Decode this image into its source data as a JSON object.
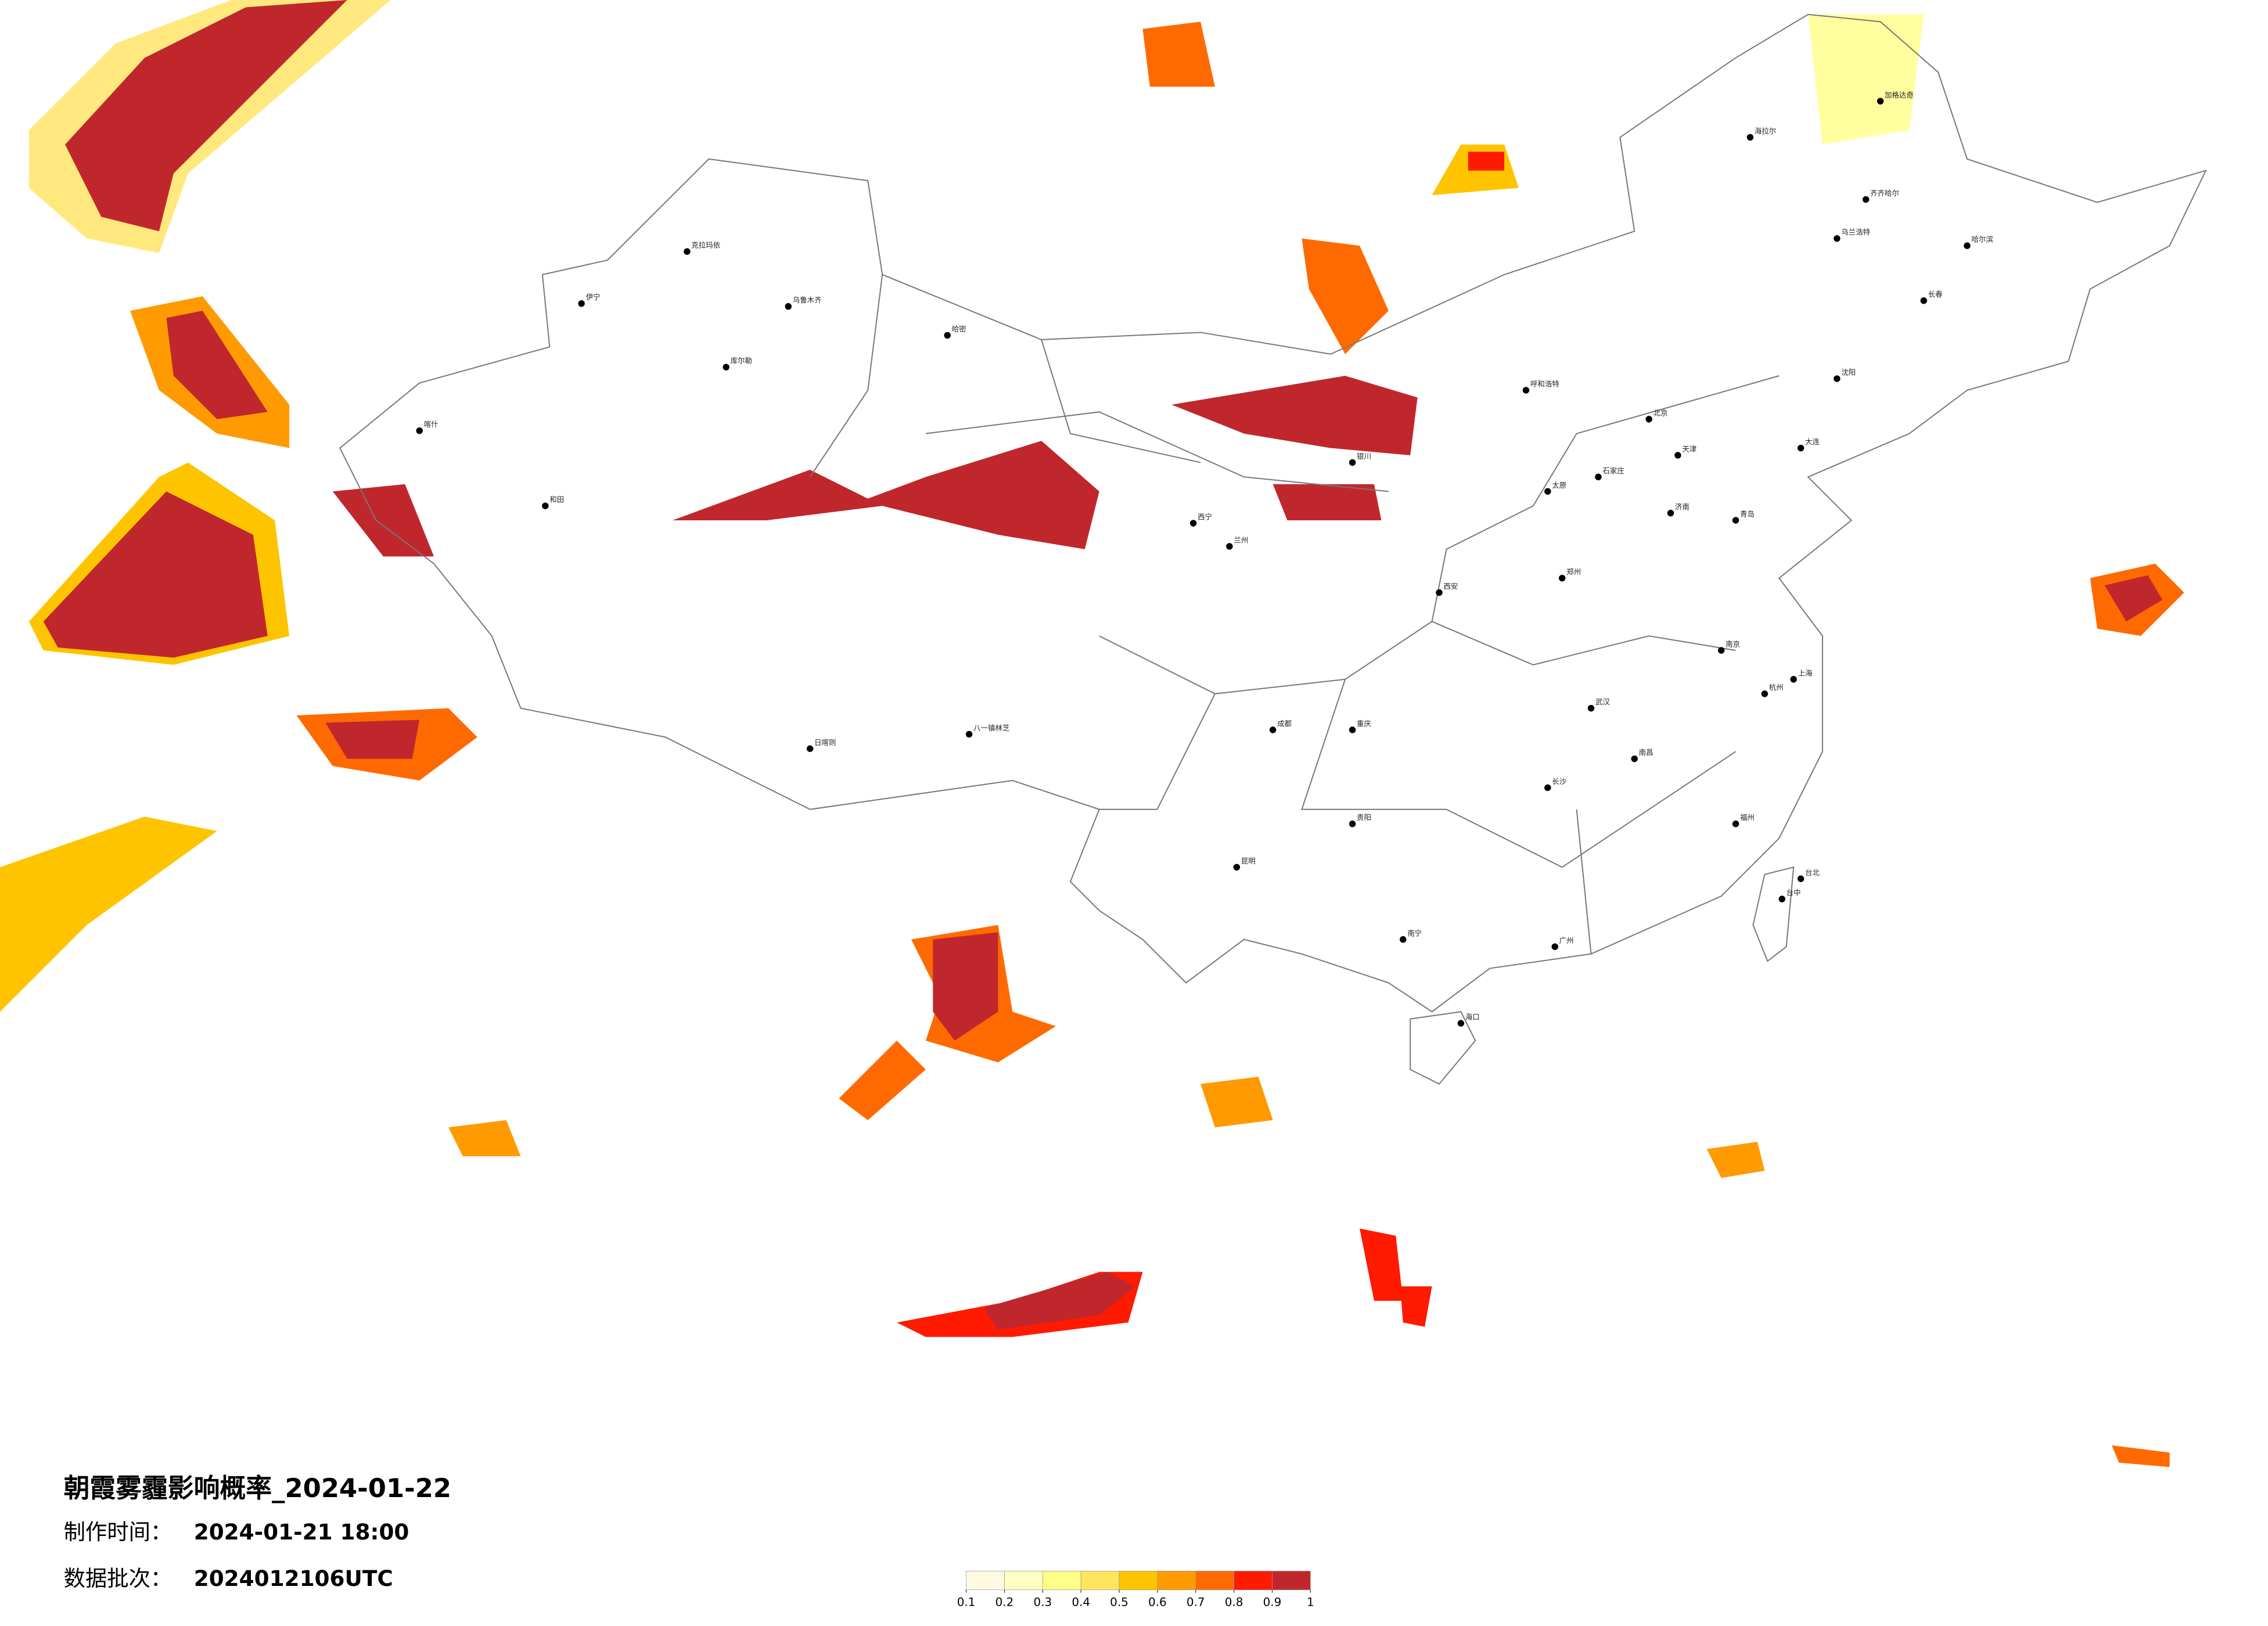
{
  "title": "朝霞雾霾影响概率_2024-01-22",
  "info": [
    {
      "label": "制作时间：",
      "value": "2024-01-21 18:00"
    },
    {
      "label": "数据批次：",
      "value": "2024012106UTC"
    }
  ],
  "colorbar": {
    "ticks": [
      0.1,
      0.2,
      0.3,
      0.4,
      0.5,
      0.6,
      0.7,
      0.8,
      0.9,
      1
    ],
    "colors": [
      "#fffbe3",
      "#ffffc2",
      "#ffff87",
      "#ffe45e",
      "#ffc400",
      "#ff9a00",
      "#ff6a00",
      "#ff1a00",
      "#c0272d"
    ]
  },
  "cities": [
    {
      "name": "北京"
    },
    {
      "name": "天津"
    },
    {
      "name": "上海"
    },
    {
      "name": "广州"
    },
    {
      "name": "哈尔滨"
    },
    {
      "name": "长春"
    },
    {
      "name": "沈阳"
    },
    {
      "name": "乌鲁木齐"
    },
    {
      "name": "八一镇林芝"
    },
    {
      "name": "兰州"
    },
    {
      "name": "成都"
    },
    {
      "name": "重庆"
    },
    {
      "name": "昆明"
    },
    {
      "name": "南宁"
    },
    {
      "name": "海口"
    },
    {
      "name": "台北"
    },
    {
      "name": "台中"
    },
    {
      "name": "武汉"
    },
    {
      "name": "长沙"
    },
    {
      "name": "南昌"
    },
    {
      "name": "福州"
    },
    {
      "name": "杭州"
    },
    {
      "name": "南京"
    },
    {
      "name": "济南"
    },
    {
      "name": "郑州"
    },
    {
      "name": "西安"
    },
    {
      "name": "太原"
    },
    {
      "name": "石家庄"
    },
    {
      "name": "呼和浩特"
    },
    {
      "name": "银川"
    },
    {
      "name": "乌兰浩特"
    },
    {
      "name": "海拉尔"
    },
    {
      "name": "加格达奇"
    },
    {
      "name": "喀什"
    },
    {
      "name": "和田"
    },
    {
      "name": "库尔勒"
    },
    {
      "name": "哈密"
    },
    {
      "name": "伊宁"
    },
    {
      "name": "克拉玛依"
    },
    {
      "name": "日喀则"
    },
    {
      "name": "贵阳"
    },
    {
      "name": "西宁"
    },
    {
      "name": "齐齐哈尔"
    },
    {
      "name": "大连"
    },
    {
      "name": "青岛"
    }
  ]
}
